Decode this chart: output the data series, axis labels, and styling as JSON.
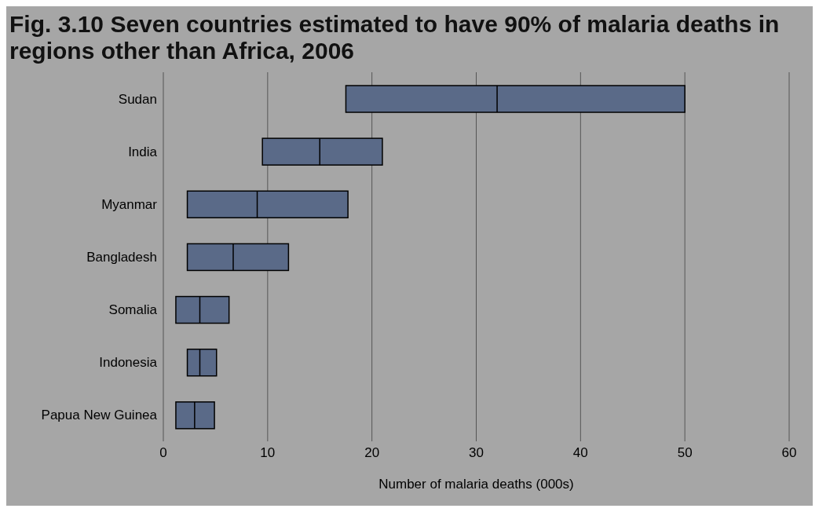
{
  "chart_data": {
    "type": "box",
    "title": "Fig. 3.10   Seven countries estimated to have 90% of malaria deaths in regions other than Africa, 2006",
    "xlabel": "Number of malaria deaths (000s)",
    "orientation": "horizontal",
    "grid": "x",
    "color": "#5a6a88",
    "categories": [
      "Sudan",
      "India",
      "Myanmar",
      "Bangladesh",
      "Somalia",
      "Indonesia",
      "Papua New Guinea"
    ],
    "boxes": [
      {
        "low": 17.5,
        "q1": 17.5,
        "median": 32,
        "q3": 50,
        "high": 50
      },
      {
        "low": 9.5,
        "q1": 9.5,
        "median": 15,
        "q3": 21,
        "high": 21
      },
      {
        "low": 2.3,
        "q1": 2.3,
        "median": 9,
        "q3": 17.7,
        "high": 17.7
      },
      {
        "low": 2.3,
        "q1": 2.3,
        "median": 6.7,
        "q3": 12,
        "high": 12
      },
      {
        "low": 1.2,
        "q1": 1.2,
        "median": 3.5,
        "q3": 6.3,
        "high": 6.3
      },
      {
        "low": 2.3,
        "q1": 2.3,
        "median": 3.5,
        "q3": 5.1,
        "high": 5.1
      },
      {
        "low": 1.2,
        "q1": 1.2,
        "median": 3,
        "q3": 4.9,
        "high": 4.9
      }
    ],
    "xlim": [
      0,
      60
    ],
    "xticks": [
      0,
      10,
      20,
      30,
      40,
      50,
      60
    ]
  }
}
